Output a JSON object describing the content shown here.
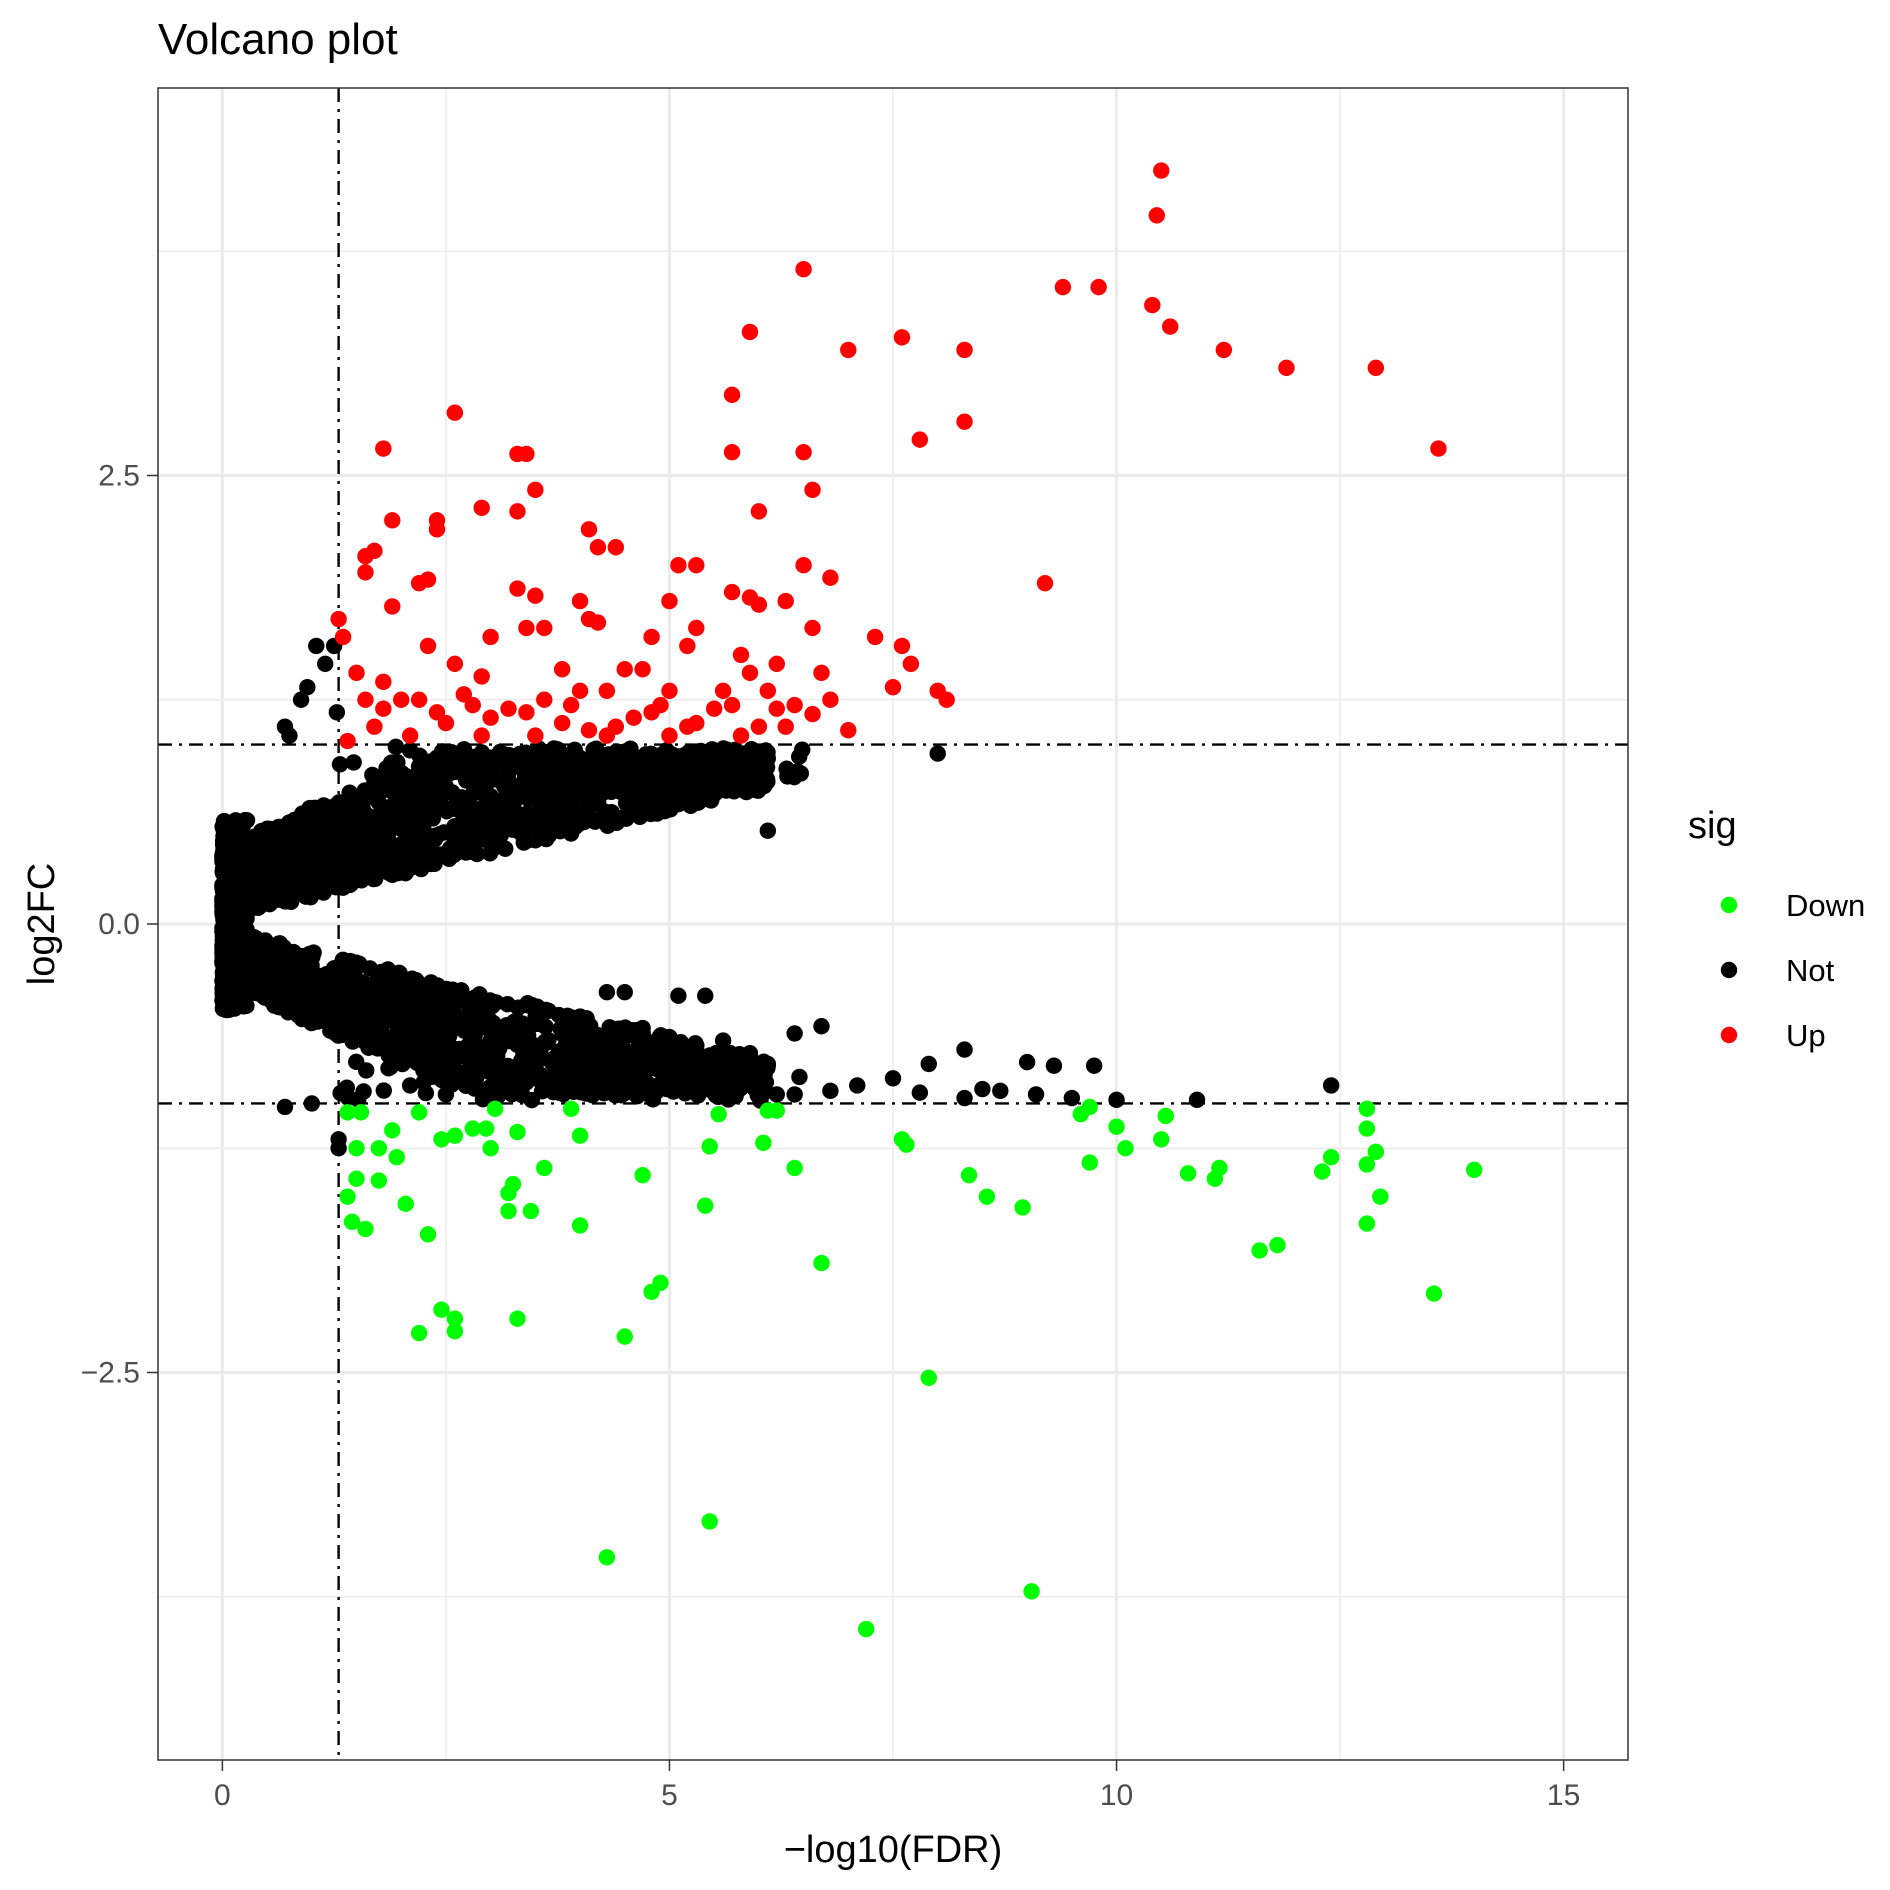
{
  "chart_data": {
    "type": "scatter",
    "title": "Volcano plot",
    "xlabel": "−log10(FDR)",
    "ylabel": "log2FC",
    "xlim": [
      -0.72,
      15.72
    ],
    "ylim": [
      -4.66,
      4.66
    ],
    "x_ticks": [
      {
        "value": 0,
        "label": "0"
      },
      {
        "value": 5,
        "label": "5"
      },
      {
        "value": 10,
        "label": "10"
      },
      {
        "value": 15,
        "label": "15"
      }
    ],
    "y_ticks": [
      {
        "value": -2.5,
        "label": "−2.5"
      },
      {
        "value": 0,
        "label": "0.0"
      },
      {
        "value": 2.5,
        "label": "2.5"
      }
    ],
    "x_minor_grid": [
      2.5,
      7.5,
      12.5
    ],
    "y_minor_grid": [
      -3.75,
      -1.25,
      1.25,
      3.75
    ],
    "grid": true,
    "thresholds": {
      "vertical_x": 1.3,
      "horizontal_y": [
        -1,
        1
      ],
      "line_style": "dot-dash"
    },
    "legend": {
      "title": "sig",
      "position": "right",
      "entries": [
        {
          "label": "Down",
          "color": "#00ff00"
        },
        {
          "label": "Not",
          "color": "#000000"
        },
        {
          "label": "Up",
          "color": "#ff0000"
        }
      ]
    },
    "series": [
      {
        "name": "Up",
        "color": "#ff0000",
        "points": [
          [
            10.5,
            4.2
          ],
          [
            10.45,
            3.95
          ],
          [
            6.5,
            3.65
          ],
          [
            9.4,
            3.55
          ],
          [
            9.8,
            3.55
          ],
          [
            10.4,
            3.45
          ],
          [
            10.6,
            3.33
          ],
          [
            5.9,
            3.3
          ],
          [
            7.6,
            3.27
          ],
          [
            7.0,
            3.2
          ],
          [
            8.3,
            3.2
          ],
          [
            11.2,
            3.2
          ],
          [
            11.9,
            3.1
          ],
          [
            12.9,
            3.1
          ],
          [
            5.7,
            2.95
          ],
          [
            2.6,
            2.85
          ],
          [
            8.3,
            2.8
          ],
          [
            7.8,
            2.7
          ],
          [
            13.6,
            2.65
          ],
          [
            1.8,
            2.65
          ],
          [
            3.3,
            2.62
          ],
          [
            3.4,
            2.62
          ],
          [
            5.7,
            2.63
          ],
          [
            6.5,
            2.63
          ],
          [
            3.5,
            2.42
          ],
          [
            6.6,
            2.42
          ],
          [
            2.9,
            2.32
          ],
          [
            3.3,
            2.3
          ],
          [
            6.0,
            2.3
          ],
          [
            2.4,
            2.25
          ],
          [
            1.9,
            2.25
          ],
          [
            2.4,
            2.2
          ],
          [
            4.1,
            2.2
          ],
          [
            4.2,
            2.1
          ],
          [
            1.7,
            2.08
          ],
          [
            4.4,
            2.1
          ],
          [
            1.6,
            2.05
          ],
          [
            2.3,
            1.92
          ],
          [
            2.2,
            1.9
          ],
          [
            6.5,
            2.0
          ],
          [
            5.1,
            2.0
          ],
          [
            5.3,
            2.0
          ],
          [
            6.8,
            1.93
          ],
          [
            1.6,
            1.96
          ],
          [
            3.3,
            1.87
          ],
          [
            3.5,
            1.83
          ],
          [
            5.0,
            1.8
          ],
          [
            5.7,
            1.85
          ],
          [
            5.9,
            1.82
          ],
          [
            6.0,
            1.78
          ],
          [
            6.3,
            1.8
          ],
          [
            4.0,
            1.8
          ],
          [
            9.2,
            1.9
          ],
          [
            1.9,
            1.77
          ],
          [
            4.1,
            1.7
          ],
          [
            4.2,
            1.68
          ],
          [
            5.3,
            1.65
          ],
          [
            6.6,
            1.65
          ],
          [
            7.3,
            1.6
          ],
          [
            7.6,
            1.55
          ],
          [
            3.0,
            1.6
          ],
          [
            3.4,
            1.65
          ],
          [
            3.6,
            1.65
          ],
          [
            1.3,
            1.7
          ],
          [
            1.35,
            1.6
          ],
          [
            2.3,
            1.55
          ],
          [
            4.8,
            1.6
          ],
          [
            5.2,
            1.55
          ],
          [
            5.8,
            1.5
          ],
          [
            6.2,
            1.45
          ],
          [
            7.7,
            1.45
          ],
          [
            2.6,
            1.45
          ],
          [
            1.5,
            1.4
          ],
          [
            1.8,
            1.35
          ],
          [
            2.9,
            1.38
          ],
          [
            3.8,
            1.42
          ],
          [
            4.5,
            1.42
          ],
          [
            4.7,
            1.42
          ],
          [
            5.9,
            1.4
          ],
          [
            6.7,
            1.4
          ],
          [
            7.5,
            1.32
          ],
          [
            8.0,
            1.3
          ],
          [
            8.1,
            1.25
          ],
          [
            1.6,
            1.25
          ],
          [
            2.0,
            1.25
          ],
          [
            2.2,
            1.25
          ],
          [
            2.7,
            1.28
          ],
          [
            3.2,
            1.2
          ],
          [
            3.6,
            1.25
          ],
          [
            4.0,
            1.3
          ],
          [
            4.3,
            1.3
          ],
          [
            5.0,
            1.3
          ],
          [
            5.6,
            1.3
          ],
          [
            6.1,
            1.3
          ],
          [
            6.8,
            1.25
          ],
          [
            1.7,
            1.1
          ],
          [
            2.5,
            1.12
          ],
          [
            3.0,
            1.15
          ],
          [
            3.8,
            1.12
          ],
          [
            4.6,
            1.15
          ],
          [
            5.3,
            1.12
          ],
          [
            6.0,
            1.1
          ],
          [
            6.6,
            1.17
          ],
          [
            7.0,
            1.08
          ],
          [
            1.4,
            1.02
          ],
          [
            2.1,
            1.05
          ],
          [
            2.9,
            1.05
          ],
          [
            3.5,
            1.05
          ],
          [
            4.3,
            1.05
          ],
          [
            5.0,
            1.05
          ],
          [
            5.8,
            1.05
          ],
          [
            2.4,
            1.18
          ],
          [
            3.4,
            1.18
          ],
          [
            4.8,
            1.18
          ],
          [
            5.5,
            1.2
          ],
          [
            6.2,
            1.2
          ],
          [
            1.8,
            1.2
          ],
          [
            2.8,
            1.22
          ],
          [
            3.9,
            1.22
          ],
          [
            4.9,
            1.22
          ],
          [
            5.7,
            1.22
          ],
          [
            6.4,
            1.22
          ],
          [
            4.1,
            1.08
          ],
          [
            4.4,
            1.1
          ],
          [
            5.2,
            1.1
          ],
          [
            6.3,
            1.1
          ]
        ]
      },
      {
        "name": "Not",
        "color": "#000000",
        "generated_cloud": true,
        "points": [
          [
            1.05,
            1.55
          ],
          [
            1.25,
            1.55
          ],
          [
            1.15,
            1.45
          ],
          [
            0.95,
            1.32
          ],
          [
            0.88,
            1.25
          ],
          [
            1.28,
            1.18
          ],
          [
            0.7,
            1.1
          ],
          [
            0.75,
            1.05
          ],
          [
            8.0,
            0.95
          ],
          [
            6.1,
            0.52
          ],
          [
            1.3,
            -1.2
          ],
          [
            1.3,
            -1.25
          ],
          [
            0.7,
            -1.02
          ],
          [
            1.0,
            -1.0
          ],
          [
            12.4,
            -0.9
          ],
          [
            10.9,
            -0.98
          ],
          [
            8.3,
            -0.7
          ],
          [
            9.0,
            -0.77
          ],
          [
            9.3,
            -0.79
          ],
          [
            9.75,
            -0.79
          ],
          [
            7.9,
            -0.78
          ],
          [
            7.5,
            -0.86
          ],
          [
            8.3,
            -0.97
          ],
          [
            8.7,
            -0.93
          ],
          [
            9.1,
            -0.95
          ],
          [
            9.5,
            -0.97
          ],
          [
            7.1,
            -0.9
          ],
          [
            6.7,
            -0.57
          ],
          [
            6.4,
            -0.61
          ],
          [
            5.4,
            -0.4
          ],
          [
            5.6,
            -0.65
          ],
          [
            5.9,
            -0.72
          ],
          [
            4.3,
            -0.38
          ],
          [
            4.5,
            -0.38
          ],
          [
            4.7,
            -0.58
          ],
          [
            4.2,
            -0.68
          ],
          [
            5.1,
            -0.4
          ],
          [
            6.1,
            -0.78
          ],
          [
            6.8,
            -0.93
          ],
          [
            6.2,
            -0.95
          ],
          [
            5.4,
            -0.92
          ],
          [
            1.9,
            -0.75
          ],
          [
            2.1,
            -0.9
          ],
          [
            2.5,
            -0.95
          ],
          [
            3.1,
            -0.85
          ],
          [
            3.6,
            -0.9
          ],
          [
            4.0,
            -0.92
          ],
          [
            4.6,
            -0.8
          ],
          [
            5.2,
            -0.8
          ],
          [
            5.8,
            -0.88
          ],
          [
            6.4,
            -0.95
          ],
          [
            7.8,
            -0.94
          ],
          [
            8.5,
            -0.92
          ],
          [
            10.0,
            -0.98
          ]
        ]
      },
      {
        "name": "Down",
        "color": "#00ff00",
        "points": [
          [
            1.4,
            -1.05
          ],
          [
            1.55,
            -1.05
          ],
          [
            1.5,
            -1.25
          ],
          [
            1.75,
            -1.25
          ],
          [
            1.9,
            -1.15
          ],
          [
            1.95,
            -1.3
          ],
          [
            1.5,
            -1.42
          ],
          [
            1.75,
            -1.43
          ],
          [
            1.4,
            -1.52
          ],
          [
            2.05,
            -1.56
          ],
          [
            1.45,
            -1.66
          ],
          [
            1.6,
            -1.7
          ],
          [
            2.3,
            -1.73
          ],
          [
            2.2,
            -1.05
          ],
          [
            2.45,
            -1.2
          ],
          [
            2.6,
            -1.18
          ],
          [
            2.8,
            -1.14
          ],
          [
            2.95,
            -1.14
          ],
          [
            3.0,
            -1.25
          ],
          [
            3.05,
            -1.03
          ],
          [
            3.25,
            -1.45
          ],
          [
            3.2,
            -1.5
          ],
          [
            3.2,
            -1.6
          ],
          [
            3.45,
            -1.6
          ],
          [
            3.6,
            -1.36
          ],
          [
            3.3,
            -1.16
          ],
          [
            3.9,
            -1.03
          ],
          [
            4.0,
            -1.18
          ],
          [
            4.0,
            -1.68
          ],
          [
            4.7,
            -1.4
          ],
          [
            5.4,
            -1.57
          ],
          [
            5.45,
            -1.24
          ],
          [
            5.55,
            -1.06
          ],
          [
            6.05,
            -1.22
          ],
          [
            6.1,
            -1.04
          ],
          [
            6.2,
            -1.04
          ],
          [
            6.4,
            -1.36
          ],
          [
            6.7,
            -1.89
          ],
          [
            7.6,
            -1.2
          ],
          [
            7.65,
            -1.23
          ],
          [
            8.35,
            -1.4
          ],
          [
            8.55,
            -1.52
          ],
          [
            8.95,
            -1.58
          ],
          [
            9.6,
            -1.06
          ],
          [
            9.7,
            -1.02
          ],
          [
            9.7,
            -1.33
          ],
          [
            10.0,
            -1.13
          ],
          [
            10.1,
            -1.25
          ],
          [
            10.5,
            -1.2
          ],
          [
            10.55,
            -1.07
          ],
          [
            10.8,
            -1.39
          ],
          [
            11.1,
            -1.42
          ],
          [
            11.15,
            -1.36
          ],
          [
            11.6,
            -1.82
          ],
          [
            11.8,
            -1.79
          ],
          [
            12.3,
            -1.38
          ],
          [
            12.4,
            -1.3
          ],
          [
            12.8,
            -1.03
          ],
          [
            12.8,
            -1.14
          ],
          [
            12.8,
            -1.34
          ],
          [
            12.9,
            -1.27
          ],
          [
            12.95,
            -1.52
          ],
          [
            12.8,
            -1.67
          ],
          [
            13.55,
            -2.06
          ],
          [
            14.0,
            -1.37
          ],
          [
            4.9,
            -2.0
          ],
          [
            4.8,
            -2.05
          ],
          [
            2.2,
            -2.28
          ],
          [
            2.45,
            -2.15
          ],
          [
            2.6,
            -2.2
          ],
          [
            2.6,
            -2.27
          ],
          [
            3.3,
            -2.2
          ],
          [
            4.5,
            -2.3
          ],
          [
            7.9,
            -2.53
          ],
          [
            5.45,
            -3.33
          ],
          [
            4.3,
            -3.53
          ],
          [
            9.05,
            -3.72
          ],
          [
            7.2,
            -3.93
          ]
        ]
      }
    ]
  }
}
